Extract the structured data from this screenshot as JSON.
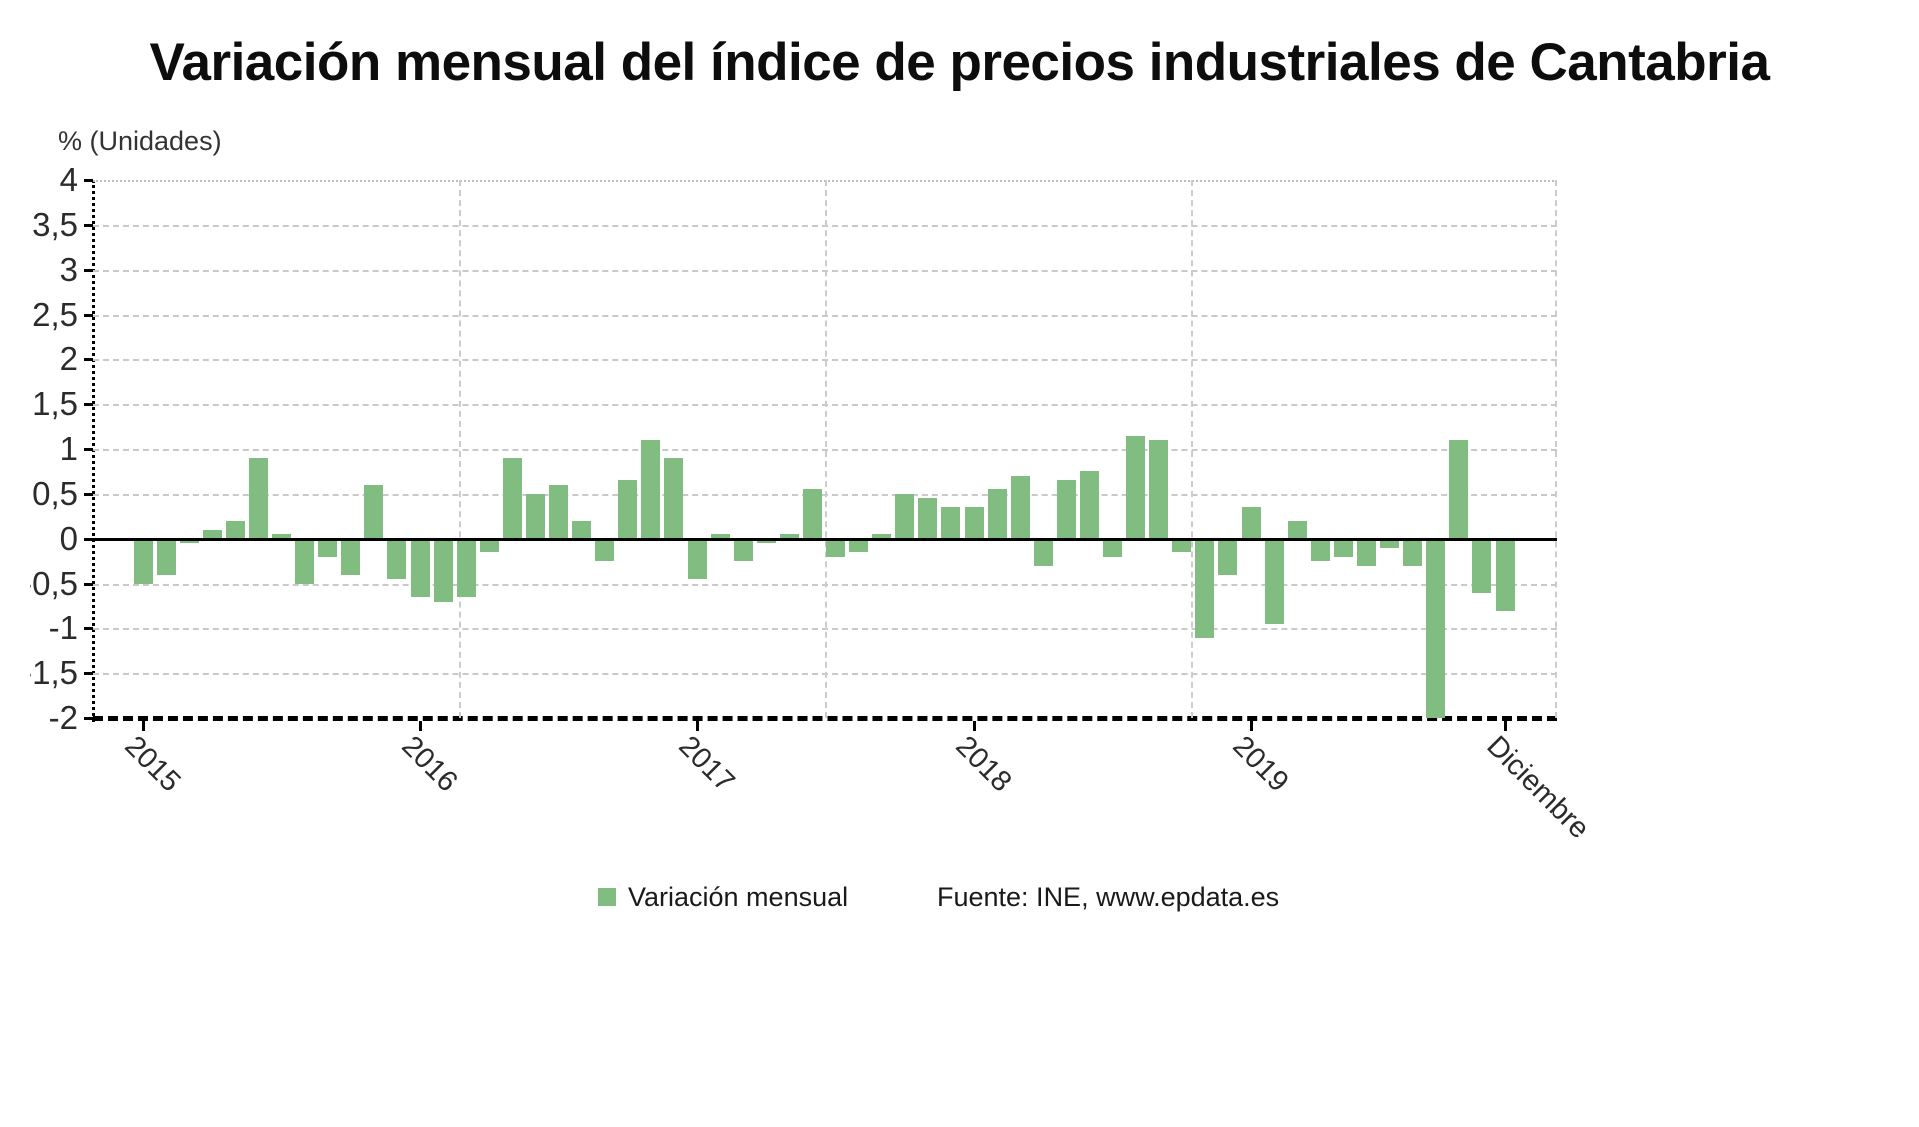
{
  "title": "Variación mensual del índice de precios industriales de Cantabria",
  "legend": {
    "swatch_color": "#81BC81",
    "label": "Variación mensual"
  },
  "source": "Fuente: INE, www.epdata.es",
  "chart_data": {
    "type": "bar",
    "title": "Variación mensual del índice de precios industriales de Cantabria",
    "ylabel": "% (Unidades)",
    "xlabel": "",
    "ylim": [
      -2,
      4
    ],
    "ytick_step": 0.5,
    "ytick_labels": [
      "4",
      "3,5",
      "3",
      "2,5",
      "2",
      "1,5",
      "1",
      "0,5",
      "0",
      "-0,5",
      "-1",
      "-1,5",
      "-2"
    ],
    "grid": "on",
    "legend_position": "bottom",
    "bar_color": "#81BC81",
    "axis_color": "#000000",
    "series": [
      {
        "name": "Variación mensual",
        "values": [
          -0.5,
          -0.4,
          -0.05,
          0.1,
          0.2,
          0.9,
          0.05,
          -0.5,
          -0.2,
          -0.4,
          0.6,
          -0.45,
          -0.65,
          -0.7,
          -0.65,
          -0.15,
          0.9,
          0.5,
          0.6,
          0.2,
          -0.25,
          0.65,
          1.1,
          0.9,
          -0.45,
          0.05,
          -0.25,
          -0.05,
          0.05,
          0.55,
          -0.2,
          -0.15,
          0.05,
          0.5,
          0.45,
          0.35,
          0.35,
          0.55,
          0.7,
          -0.3,
          0.65,
          0.75,
          -0.2,
          1.15,
          1.1,
          -0.15,
          -1.1,
          -0.4,
          0.35,
          -0.95,
          0.2,
          -0.25,
          -0.2,
          -0.3,
          -0.1,
          -0.3,
          -2.0,
          1.1,
          -0.6,
          -0.8
        ]
      }
    ],
    "x_months_total": 60,
    "x_ticks": [
      {
        "month_index": 0,
        "label": "2015"
      },
      {
        "month_index": 12,
        "label": "2016"
      },
      {
        "month_index": 24,
        "label": "2017"
      },
      {
        "month_index": 36,
        "label": "2018"
      },
      {
        "month_index": 48,
        "label": "2019"
      },
      {
        "month_index": 59,
        "label": "Diciembre"
      }
    ]
  }
}
